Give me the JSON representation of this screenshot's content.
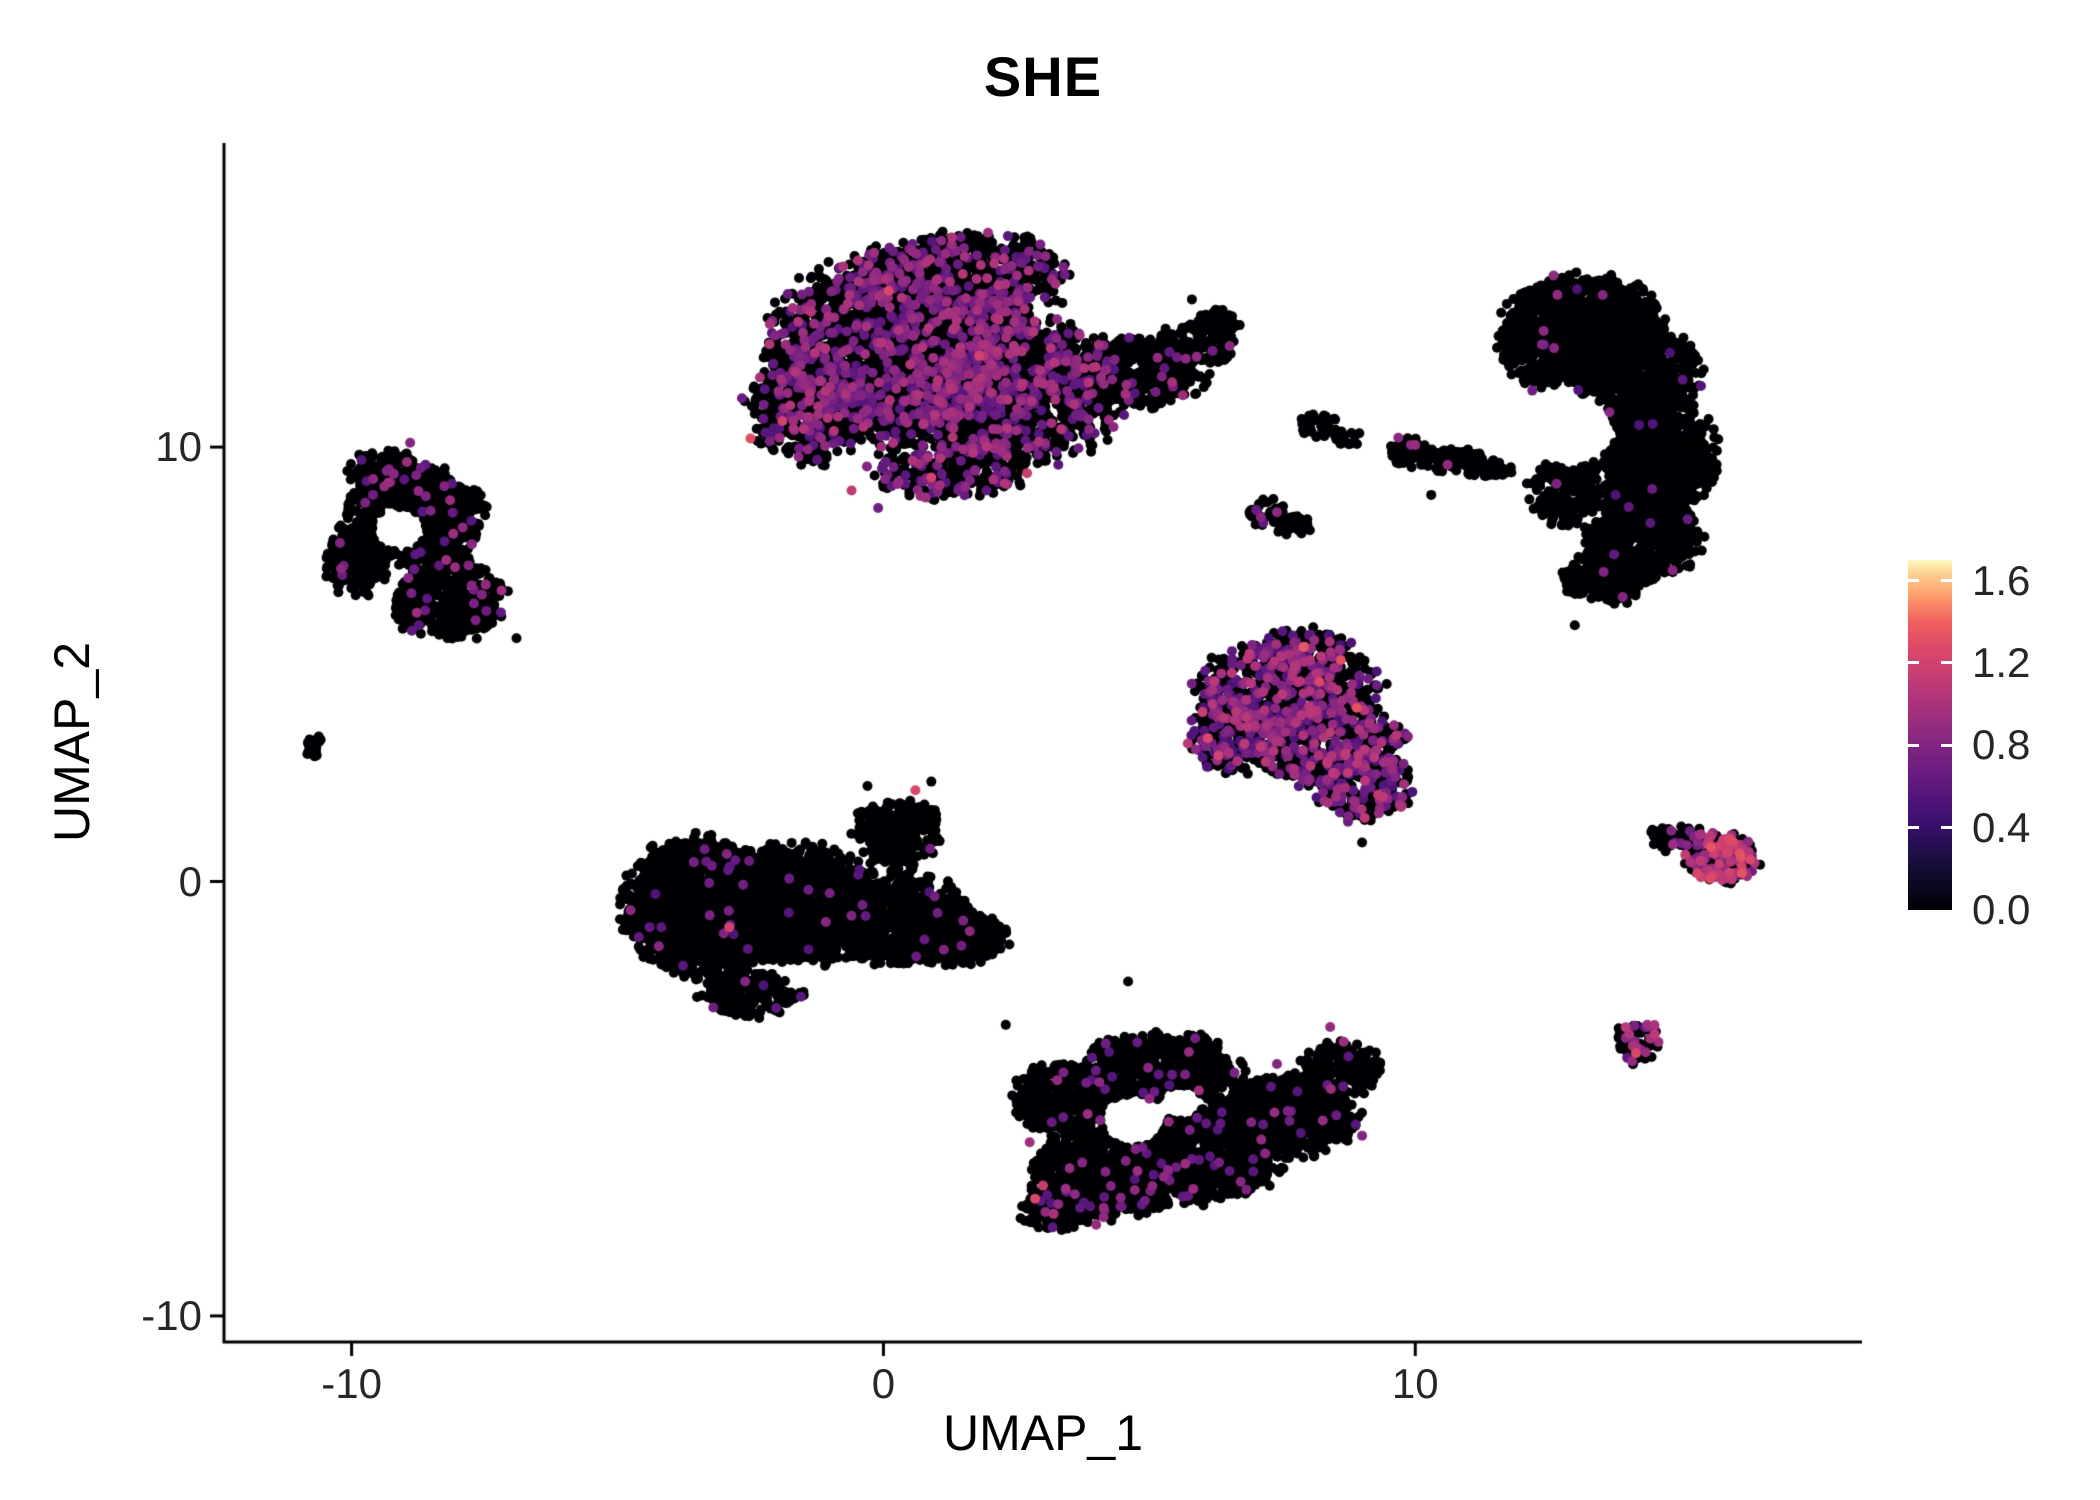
{
  "chart_data": {
    "type": "scatter",
    "title": "SHE",
    "xlabel": "UMAP_1",
    "ylabel": "UMAP_2",
    "x_ticks": [
      {
        "v": -10,
        "label": "-10"
      },
      {
        "v": 0,
        "label": "0"
      },
      {
        "v": 10,
        "label": "10"
      }
    ],
    "y_ticks": [
      {
        "v": -10,
        "label": "-10"
      },
      {
        "v": 0,
        "label": "0"
      },
      {
        "v": 10,
        "label": "10"
      }
    ],
    "xlim": [
      -12.4,
      18.4
    ],
    "ylim": [
      -10.6,
      17.0
    ],
    "grid": false,
    "legend": {
      "position": "right",
      "range": [
        0,
        1.7
      ],
      "ticks": [
        {
          "v": 1.6,
          "label": "1.6"
        },
        {
          "v": 1.2,
          "label": "1.2"
        },
        {
          "v": 0.8,
          "label": "0.8"
        },
        {
          "v": 0.4,
          "label": "0.4"
        },
        {
          "v": 0.0,
          "label": "0.0"
        }
      ]
    },
    "colormap": {
      "name": "magma",
      "stops": [
        {
          "t": 0.0,
          "color": "#000004"
        },
        {
          "t": 0.125,
          "color": "#140e36"
        },
        {
          "t": 0.25,
          "color": "#3b0f70"
        },
        {
          "t": 0.375,
          "color": "#641a80"
        },
        {
          "t": 0.5,
          "color": "#8c2981"
        },
        {
          "t": 0.625,
          "color": "#b73779"
        },
        {
          "t": 0.75,
          "color": "#de4968"
        },
        {
          "t": 0.825,
          "color": "#f1605d"
        },
        {
          "t": 0.9,
          "color": "#fe9f6d"
        },
        {
          "t": 0.96,
          "color": "#fecf92"
        },
        {
          "t": 1.0,
          "color": "#fcfdbf"
        }
      ]
    },
    "point_radius_px": 5,
    "seed": 12,
    "clusters": [
      {
        "name": "top-center-blob",
        "expr": {
          "frac": 0.22,
          "lo": 0.55,
          "hi": 1.05
        },
        "lobes": [
          [
            0.3,
            12.3,
            2.3,
            2.0,
            2400
          ],
          [
            2.5,
            11.3,
            1.9,
            1.6,
            1400
          ],
          [
            1.5,
            13.9,
            1.9,
            1.0,
            650
          ],
          [
            -1.4,
            11.0,
            1.1,
            1.3,
            450
          ],
          [
            1.2,
            9.5,
            1.4,
            0.7,
            300
          ],
          [
            4.7,
            11.7,
            1.3,
            0.8,
            450,
            0.05
          ],
          [
            5.9,
            12.4,
            0.7,
            0.5,
            120,
            0.02
          ],
          [
            6.3,
            12.9,
            0.4,
            0.3,
            60,
            0
          ]
        ],
        "holes": [],
        "highlights": [
          [
            0.1,
            13.6,
            1.25
          ],
          [
            -1.9,
            10.6,
            1.2
          ],
          [
            -2.5,
            10.2,
            1.3
          ],
          [
            0.9,
            9.3,
            1.2
          ],
          [
            2.7,
            9.4,
            1.15
          ],
          [
            -0.6,
            9.0,
            1.1
          ],
          [
            1.8,
            12.1,
            1.2
          ]
        ]
      },
      {
        "name": "left-ring",
        "expr": {
          "frac": 0.035,
          "lo": 0.55,
          "hi": 0.95
        },
        "lobes": [
          [
            -8.8,
            8.4,
            1.2,
            1.1,
            800
          ],
          [
            -8.2,
            6.5,
            1.0,
            0.9,
            450
          ],
          [
            -9.9,
            7.4,
            0.55,
            0.8,
            200
          ],
          [
            -9.3,
            9.4,
            0.7,
            0.5,
            150
          ]
        ],
        "holes": [
          [
            -9.1,
            8.1,
            0.5
          ]
        ],
        "highlights": [
          [
            -10.2,
            7.2,
            0.85
          ],
          [
            -8.9,
            10.1,
            0.8
          ],
          [
            -7.7,
            6.4,
            0.75
          ],
          [
            -9.6,
            8.9,
            0.7
          ]
        ]
      },
      {
        "name": "tiny-far-left",
        "expr": {
          "frac": 0,
          "lo": 0,
          "hi": 0
        },
        "lobes": [
          [
            -10.7,
            3.1,
            0.18,
            0.28,
            22
          ]
        ],
        "holes": [],
        "highlights": []
      },
      {
        "name": "center-left-blob",
        "expr": {
          "frac": 0.01,
          "lo": 0.5,
          "hi": 0.85
        },
        "lobes": [
          [
            -3.4,
            -0.6,
            1.4,
            1.5,
            1600
          ],
          [
            -1.6,
            -0.5,
            1.5,
            1.3,
            1300
          ],
          [
            0.3,
            -0.9,
            1.3,
            1.0,
            700
          ],
          [
            0.3,
            1.1,
            0.8,
            0.8,
            230
          ],
          [
            1.5,
            -1.3,
            0.8,
            0.6,
            220
          ],
          [
            -2.5,
            -2.6,
            0.9,
            0.5,
            200
          ]
        ],
        "holes": [],
        "highlights": [
          [
            -2.9,
            -1.05,
            1.2
          ],
          [
            0.6,
            2.1,
            1.25
          ],
          [
            -2.6,
            -2.3,
            0.8
          ],
          [
            1.5,
            -0.9,
            0.75
          ],
          [
            -3.2,
            -2.9,
            0.7
          ]
        ]
      },
      {
        "name": "mid-right-triangle",
        "expr": {
          "frac": 0.3,
          "lo": 0.5,
          "hi": 1.1
        },
        "lobes": [
          [
            7.6,
            4.5,
            1.6,
            0.9,
            620
          ],
          [
            8.3,
            3.2,
            1.4,
            0.9,
            560
          ],
          [
            9.0,
            2.2,
            0.9,
            0.8,
            280
          ],
          [
            6.6,
            3.4,
            0.8,
            0.9,
            260
          ],
          [
            7.8,
            5.3,
            1.0,
            0.5,
            150
          ]
        ],
        "holes": [],
        "highlights": [
          [
            7.9,
            5.4,
            1.35
          ],
          [
            8.6,
            5.1,
            1.3
          ],
          [
            6.1,
            3.3,
            1.25
          ],
          [
            6.3,
            2.9,
            1.2
          ],
          [
            8.9,
            4.0,
            1.3
          ],
          [
            9.3,
            2.0,
            1.1
          ],
          [
            6.0,
            3.9,
            1.15
          ],
          [
            8.2,
            4.6,
            1.25
          ]
        ]
      },
      {
        "name": "small-upper-1",
        "expr": {
          "frac": 0,
          "lo": 0,
          "hi": 0
        },
        "lobes": [
          [
            8.2,
            10.5,
            0.35,
            0.3,
            40
          ],
          [
            8.7,
            10.2,
            0.25,
            0.2,
            18
          ]
        ],
        "holes": [],
        "highlights": []
      },
      {
        "name": "small-upper-dash",
        "expr": {
          "frac": 0.02,
          "lo": 0.6,
          "hi": 0.9
        },
        "lobes": [
          [
            9.9,
            9.9,
            0.4,
            0.35,
            65
          ],
          [
            10.7,
            9.7,
            0.55,
            0.25,
            75
          ],
          [
            11.4,
            9.5,
            0.45,
            0.18,
            45
          ]
        ],
        "holes": [],
        "highlights": [
          [
            10.0,
            10.05,
            0.9
          ]
        ]
      },
      {
        "name": "small-upper-2",
        "expr": {
          "frac": 0.03,
          "lo": 0.6,
          "hi": 0.9
        },
        "lobes": [
          [
            7.2,
            8.5,
            0.35,
            0.3,
            45
          ],
          [
            7.7,
            8.2,
            0.35,
            0.22,
            32
          ]
        ],
        "holes": [],
        "highlights": [
          [
            7.4,
            8.5,
            0.85
          ]
        ]
      },
      {
        "name": "right-crescent",
        "expr": {
          "frac": 0.006,
          "lo": 0.5,
          "hi": 0.85
        },
        "lobes": [
          [
            13.2,
            13.0,
            1.4,
            0.9,
            650
          ],
          [
            14.2,
            11.6,
            1.1,
            1.2,
            750
          ],
          [
            14.6,
            9.8,
            1.0,
            1.2,
            750
          ],
          [
            14.3,
            8.0,
            1.0,
            1.0,
            550
          ],
          [
            13.6,
            7.0,
            0.8,
            0.6,
            220
          ],
          [
            12.4,
            12.2,
            0.8,
            0.8,
            280
          ],
          [
            12.9,
            9.0,
            0.7,
            0.8,
            200
          ]
        ],
        "holes": [
          [
            12.9,
            10.4,
            0.85
          ]
        ],
        "highlights": [
          [
            12.6,
            13.95,
            0.85
          ],
          [
            13.9,
            6.55,
            0.8
          ],
          [
            12.2,
            11.3,
            0.7
          ]
        ]
      },
      {
        "name": "small-right-dark",
        "expr": {
          "frac": 0.12,
          "lo": 0.6,
          "hi": 1.0
        },
        "lobes": [
          [
            14.9,
            1.0,
            0.55,
            0.3,
            70
          ]
        ],
        "holes": [],
        "highlights": []
      },
      {
        "name": "small-right-hot",
        "expr": {
          "frac": 0.5,
          "lo": 0.7,
          "hi": 1.35
        },
        "lobes": [
          [
            15.8,
            0.5,
            0.65,
            0.55,
            200
          ]
        ],
        "holes": [],
        "highlights": [
          [
            16.1,
            0.65,
            1.3
          ],
          [
            16.3,
            0.5,
            1.25
          ],
          [
            15.9,
            0.2,
            1.2
          ],
          [
            16.0,
            0.85,
            1.15
          ]
        ]
      },
      {
        "name": "small-bottom-right",
        "expr": {
          "frac": 0.22,
          "lo": 0.6,
          "hi": 1.1
        },
        "lobes": [
          [
            14.2,
            -3.7,
            0.4,
            0.5,
            70
          ]
        ],
        "holes": [],
        "highlights": [
          [
            14.15,
            -3.95,
            1.25
          ]
        ]
      },
      {
        "name": "bottom-center-blob",
        "expr": {
          "frac": 0.035,
          "lo": 0.55,
          "hi": 0.95
        },
        "lobes": [
          [
            4.2,
            -6.7,
            1.3,
            1.0,
            800
          ],
          [
            6.0,
            -6.2,
            1.5,
            1.1,
            950
          ],
          [
            7.6,
            -5.4,
            1.3,
            0.9,
            650
          ],
          [
            5.2,
            -4.3,
            1.4,
            0.8,
            550
          ],
          [
            3.4,
            -5.0,
            0.9,
            0.8,
            350
          ],
          [
            3.3,
            -7.5,
            0.7,
            0.5,
            200
          ],
          [
            8.6,
            -4.3,
            0.7,
            0.6,
            180
          ]
        ],
        "holes": [
          [
            4.7,
            -5.5,
            0.6
          ],
          [
            5.6,
            -5.1,
            0.4
          ]
        ],
        "highlights": [
          [
            2.85,
            -7.3,
            1.25
          ],
          [
            3.0,
            -7.0,
            1.15
          ],
          [
            2.75,
            -6.0,
            0.95
          ],
          [
            3.2,
            -7.65,
            1.0
          ],
          [
            3.5,
            -6.6,
            0.9
          ],
          [
            8.4,
            -3.35,
            0.9
          ],
          [
            9.0,
            -5.85,
            0.8
          ],
          [
            7.4,
            -4.2,
            0.8
          ],
          [
            5.0,
            -5.0,
            0.85
          ],
          [
            6.6,
            -4.4,
            0.75
          ],
          [
            4.0,
            -7.9,
            0.9
          ],
          [
            3.6,
            -7.2,
            0.85
          ]
        ]
      },
      {
        "name": "stray-points",
        "expr": {
          "frac": 0,
          "lo": 0,
          "hi": 0
        },
        "lobes": [],
        "holes": [],
        "highlights": [
          [
            5.8,
            13.4,
            0
          ],
          [
            2.3,
            -3.3,
            0
          ],
          [
            0.9,
            2.3,
            0
          ],
          [
            -0.3,
            2.2,
            0
          ],
          [
            13.0,
            5.9,
            0
          ],
          [
            -6.9,
            5.6,
            0
          ],
          [
            4.6,
            -2.3,
            0
          ],
          [
            -0.1,
            8.6,
            0.7
          ],
          [
            10.3,
            8.9,
            0
          ],
          [
            9.0,
            0.9,
            0
          ]
        ]
      }
    ]
  }
}
